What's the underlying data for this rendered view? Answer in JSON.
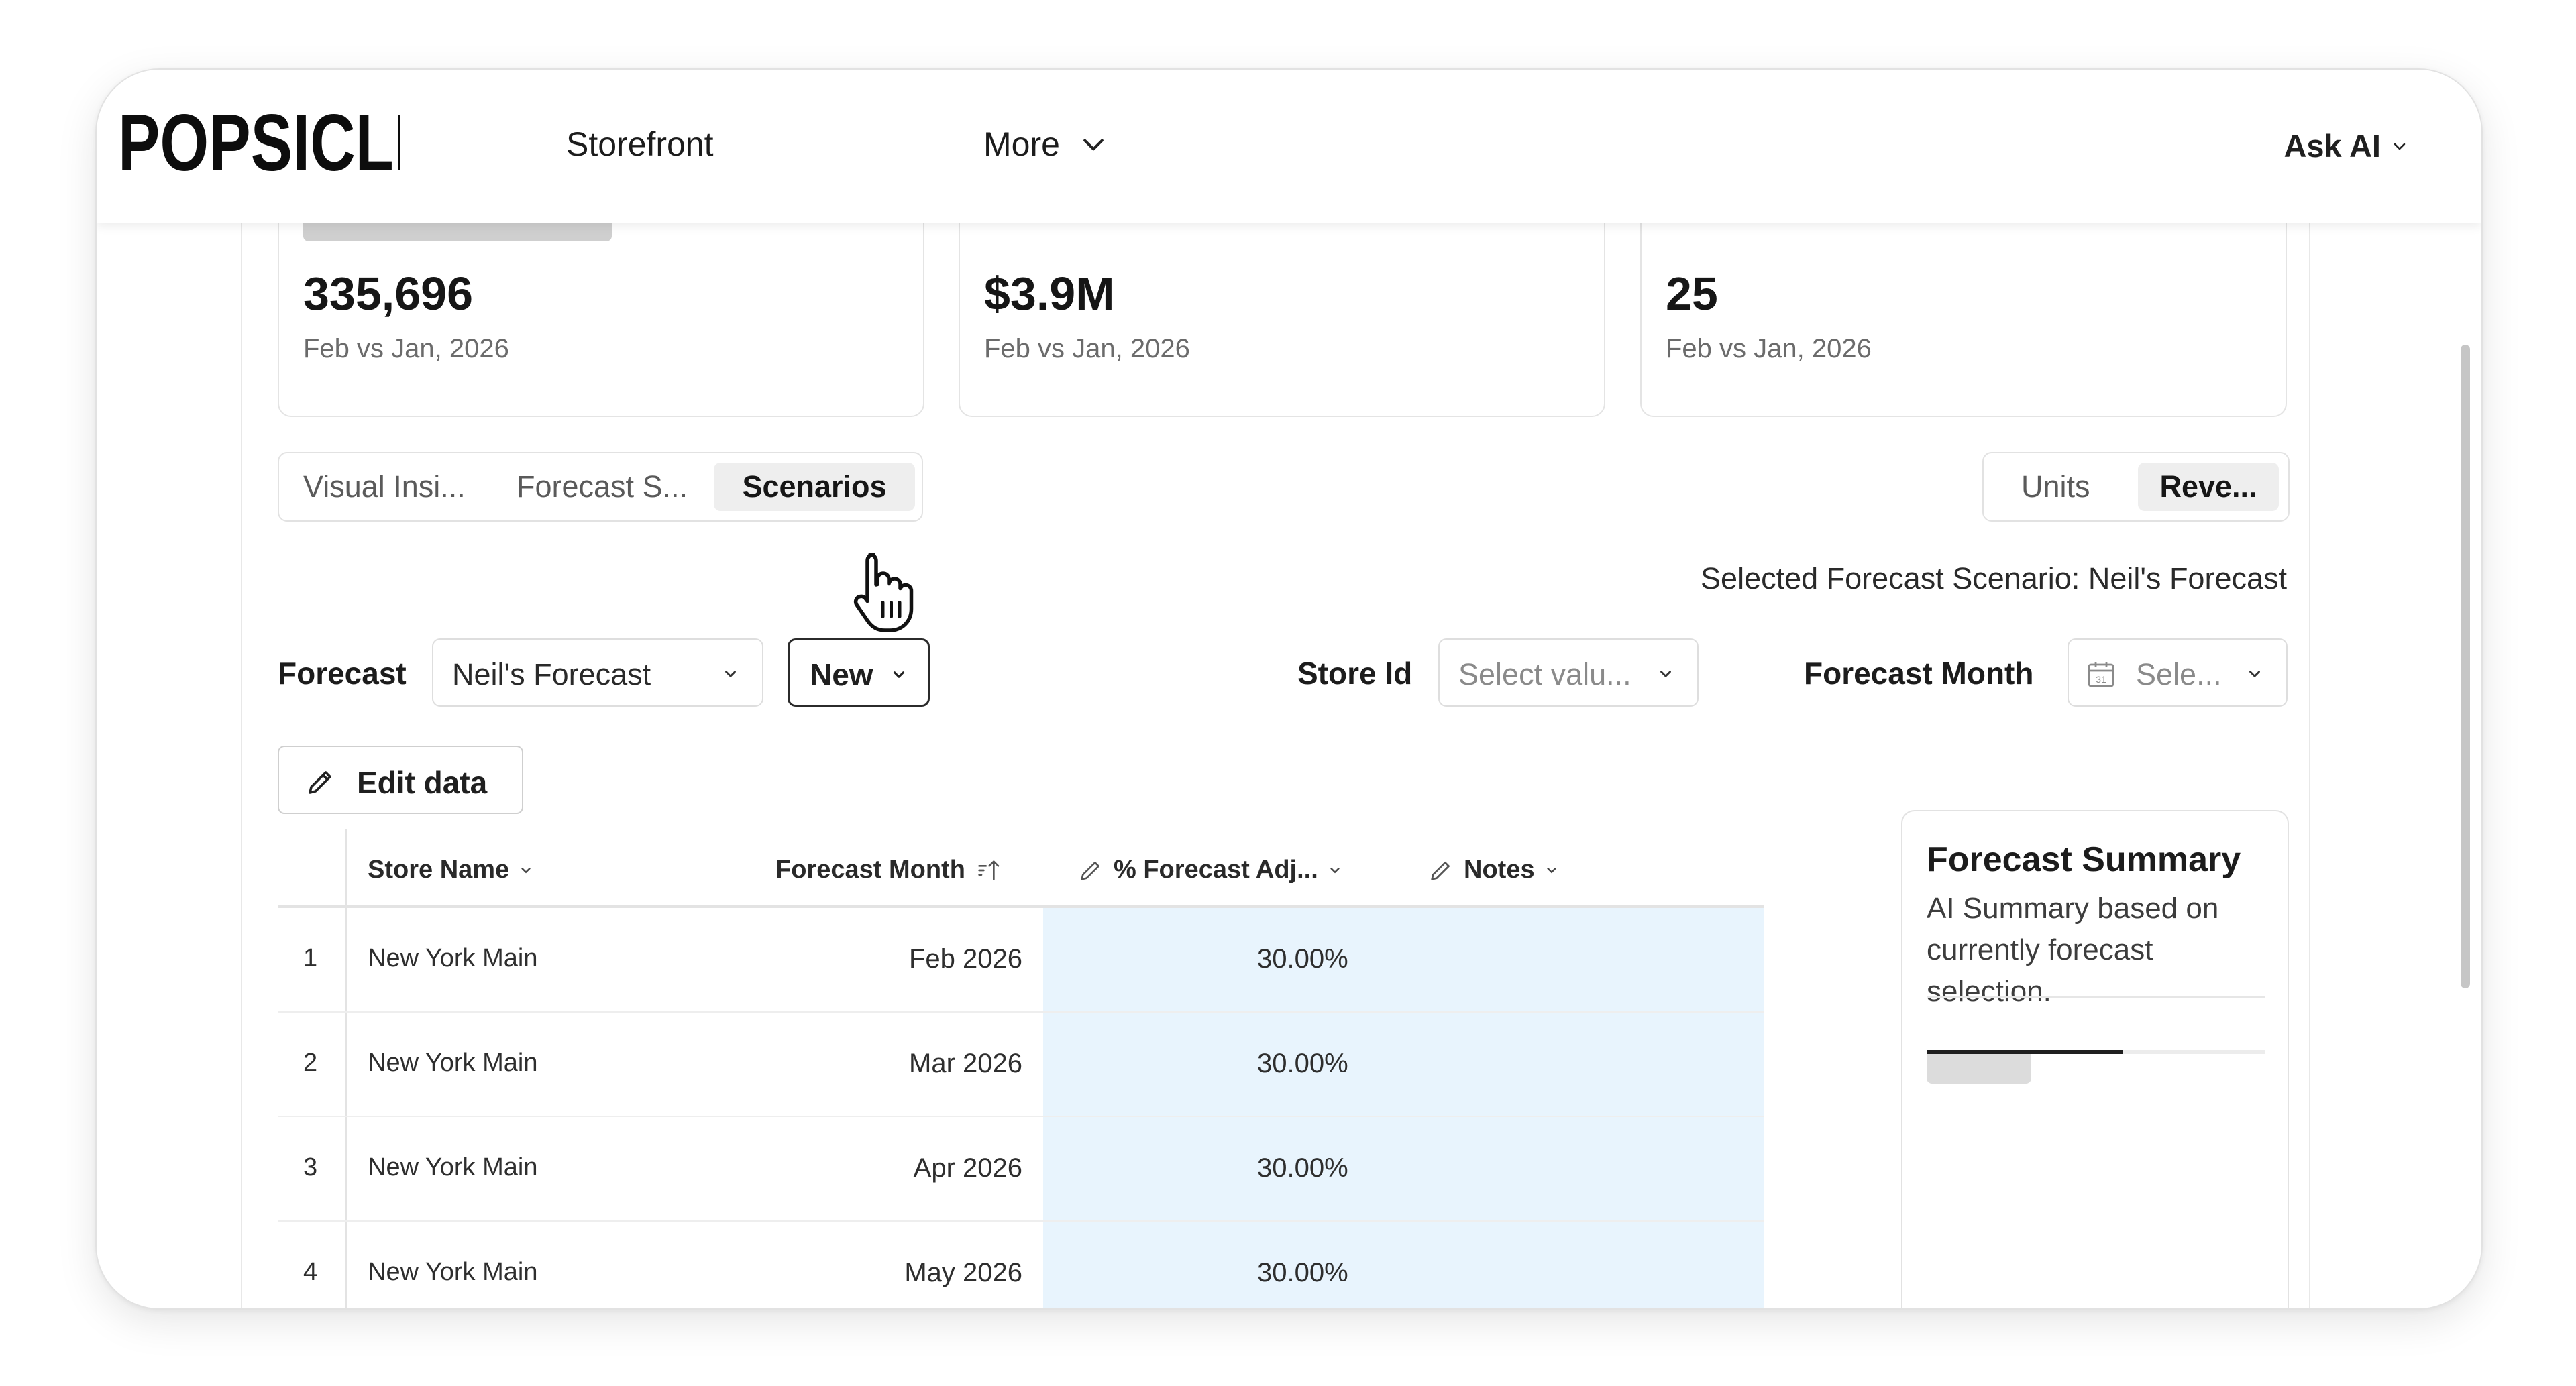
{
  "brand": {
    "logo_text": "POPSICLE"
  },
  "nav": {
    "storefront": "Storefront",
    "more": "More",
    "ask_ai": "Ask AI"
  },
  "kpis": [
    {
      "value": "335,696",
      "sub": "Feb vs Jan, 2026"
    },
    {
      "value": "$3.9M",
      "sub": "Feb vs Jan, 2026"
    },
    {
      "value": "25",
      "sub": "Feb vs Jan, 2026"
    }
  ],
  "tabs": [
    {
      "label": "Visual Insi..."
    },
    {
      "label": "Forecast S..."
    },
    {
      "label": "Scenarios",
      "active": true
    }
  ],
  "toggle": [
    {
      "label": "Units"
    },
    {
      "label": "Reve...",
      "active": true
    }
  ],
  "selected_scenario": "Selected Forecast Scenario: Neil's Forecast",
  "filters": {
    "forecast_label": "Forecast",
    "forecast_value": "Neil's Forecast",
    "new_label": "New",
    "store_id_label": "Store Id",
    "store_id_placeholder": "Select valu...",
    "forecast_month_label": "Forecast Month",
    "forecast_month_placeholder": "Sele..."
  },
  "edit_data_label": "Edit data",
  "table": {
    "columns": [
      "Store Name",
      "Forecast Month",
      "% Forecast Adj...",
      "Notes"
    ],
    "rows": [
      {
        "num": "1",
        "store": "New York Main",
        "month": "Feb 2026",
        "adj": "30.00%",
        "notes": ""
      },
      {
        "num": "2",
        "store": "New York Main",
        "month": "Mar 2026",
        "adj": "30.00%",
        "notes": ""
      },
      {
        "num": "3",
        "store": "New York Main",
        "month": "Apr 2026",
        "adj": "30.00%",
        "notes": ""
      },
      {
        "num": "4",
        "store": "New York Main",
        "month": "May 2026",
        "adj": "30.00%",
        "notes": ""
      }
    ]
  },
  "summary": {
    "title": "Forecast Summary",
    "description": "AI Summary based on currently forecast selection.",
    "progress": 0.58
  },
  "colors": {
    "accent_highlight": "#e8f4fd",
    "text_primary": "#1c1c1c",
    "border": "#e2e2e2"
  },
  "icons": {
    "more": "chevron-down-icon",
    "ask_ai": "chevron-down-icon",
    "edit": "pencil-icon",
    "calendar": "calendar-icon",
    "sort": "sort-ascending-icon",
    "cursor": "hand-pointer-icon"
  }
}
